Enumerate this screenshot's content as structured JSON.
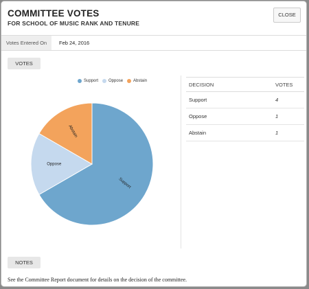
{
  "modal": {
    "title": "COMMITTEE VOTES",
    "subtitle": "FOR SCHOOL OF MUSIC RANK AND TENURE",
    "close_label": "CLOSE"
  },
  "entered": {
    "label": "Votes Entered On",
    "value": "Feb 24, 2016"
  },
  "votes_button": "VOTES",
  "notes_button": "NOTES",
  "notes_text": "See the Committee Report document for details on the decision of the committee.",
  "colors": {
    "support": "#6ea6cd",
    "oppose": "#c5d9ee",
    "abstain": "#f3a35c"
  },
  "chart_data": {
    "type": "pie",
    "categories": [
      "Support",
      "Oppose",
      "Abstain"
    ],
    "values": [
      4,
      1,
      1
    ],
    "legend": "top"
  },
  "table": {
    "headers": [
      "DECISION",
      "VOTES"
    ],
    "rows": [
      [
        "Support",
        "4"
      ],
      [
        "Oppose",
        "1"
      ],
      [
        "Abstain",
        "1"
      ]
    ]
  }
}
